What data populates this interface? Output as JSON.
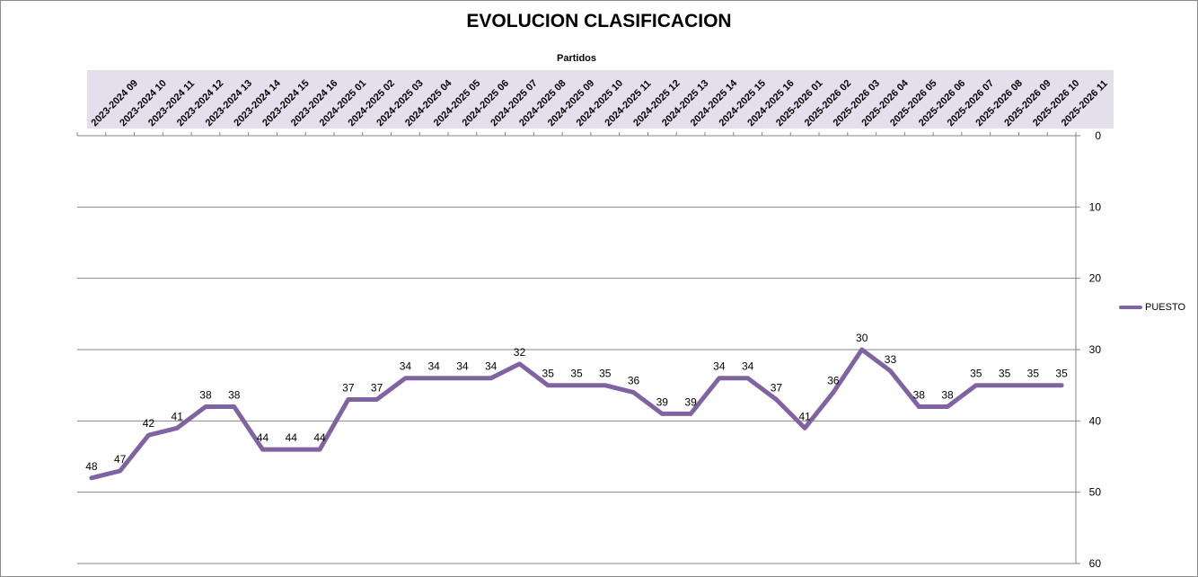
{
  "chart_data": {
    "type": "line",
    "title": "EVOLUCION CLASIFICACION",
    "xlabel": "Partidos",
    "ylabel": "",
    "x_axis_position": "top",
    "y_axis_position": "right",
    "y_inverted": true,
    "ylim": [
      0,
      60
    ],
    "yticks": [
      0,
      10,
      20,
      30,
      40,
      50,
      60
    ],
    "grid": true,
    "legend": "right",
    "categories": [
      "2023-2024 09",
      "2023-2024 10",
      "2023-2024 11",
      "2023-2024 12",
      "2023-2024 13",
      "2023-2024 14",
      "2023-2024 15",
      "2023-2024 16",
      "2024-2025 01",
      "2024-2025 02",
      "2024-2025 03",
      "2024-2025 04",
      "2024-2025 05",
      "2024-2025 06",
      "2024-2025 07",
      "2024-2025 08",
      "2024-2025 09",
      "2024-2025 10",
      "2024-2025 11",
      "2024-2025 12",
      "2024-2025 13",
      "2024-2025 14",
      "2024-2025 15",
      "2024-2025 16",
      "2025-2026 01",
      "2025-2026 02",
      "2025-2026 03",
      "2025-2026 04",
      "2025-2026 05",
      "2025-2026 06",
      "2025-2026 07",
      "2025-2026 08",
      "2025-2026 09",
      "2025-2026 10",
      "2025-2026 11"
    ],
    "series": [
      {
        "name": "PUESTO",
        "color": "#8064a2",
        "values": [
          48,
          47,
          42,
          41,
          38,
          38,
          44,
          44,
          44,
          37,
          37,
          34,
          34,
          34,
          34,
          32,
          35,
          35,
          35,
          36,
          39,
          39,
          34,
          34,
          37,
          41,
          36,
          30,
          33,
          38,
          38,
          35,
          35,
          35,
          35
        ]
      }
    ]
  },
  "colors": {
    "category_band": "#e4dfec",
    "gridline": "#868686",
    "series": "#8064a2"
  }
}
